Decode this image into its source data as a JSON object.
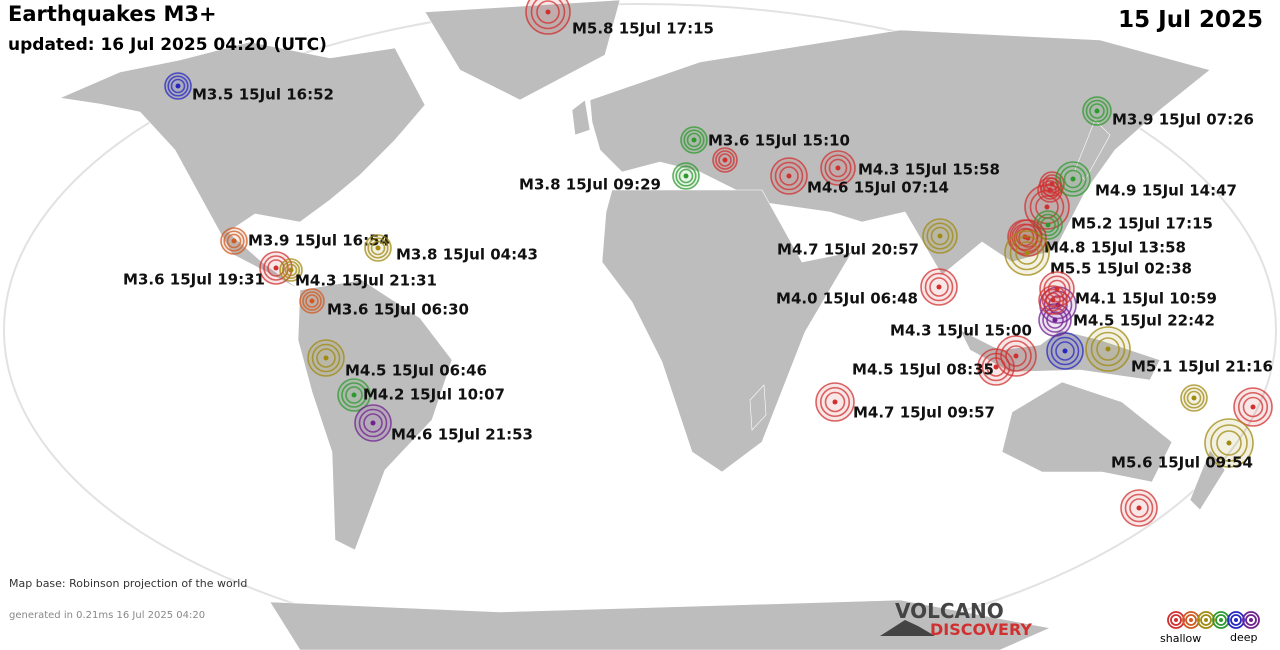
{
  "header": {
    "title": "Earthquakes M3+",
    "updated": "updated: 16 Jul 2025 04:20 (UTC)",
    "date": "15 Jul 2025"
  },
  "footer": {
    "map_base": "Map base: Robinson projection of the world",
    "generated": "generated in 0.21ms 16 Jul 2025 04:20"
  },
  "logo": {
    "top": "VOLCANO",
    "bottom": "DISCOVERY"
  },
  "legend": {
    "colors": [
      "#d03030",
      "#d05a20",
      "#a08a10",
      "#2e9a2e",
      "#2828c0",
      "#702090"
    ],
    "shallow": "shallow",
    "deep": "deep"
  },
  "quakes": [
    {
      "label": "M5.8 15Jul 17:15",
      "color": "#d03030"
    },
    {
      "label": "M3.5 15Jul 16:52",
      "color": "#2828c0"
    },
    {
      "label": "M3.9 15Jul 07:26",
      "color": "#2e9a2e"
    },
    {
      "label": "M3.6 15Jul 15:10",
      "color": "#2e9a2e"
    },
    {
      "label": "M3.8 15Jul 09:29",
      "color": "#2e9a2e"
    },
    {
      "label": "M4.3 15Jul 15:58",
      "color": "#d03030"
    },
    {
      "label": "M4.6 15Jul 07:14",
      "color": "#d03030"
    },
    {
      "label": "M4.9 15Jul 14:47",
      "color": "#2e9a2e"
    },
    {
      "label": "M5.2 15Jul 17:15",
      "color": "#d03030"
    },
    {
      "label": "M4.7 15Jul 20:57",
      "color": "#a08a10"
    },
    {
      "label": "M4.8 15Jul 13:58",
      "color": "#d03030"
    },
    {
      "label": "M5.5 15Jul 02:38",
      "color": "#a08a10"
    },
    {
      "label": "M3.9 15Jul 16:54",
      "color": "#d05a20"
    },
    {
      "label": "M3.8 15Jul 04:43",
      "color": "#a08a10"
    },
    {
      "label": "M3.6 15Jul 19:31",
      "color": "#d03030"
    },
    {
      "label": "M4.3 15Jul 21:31",
      "color": "#a08a10"
    },
    {
      "label": "M3.6 15Jul 06:30",
      "color": "#d05a20"
    },
    {
      "label": "M4.0 15Jul 06:48",
      "color": "#d03030"
    },
    {
      "label": "M4.1 15Jul 10:59",
      "color": "#d03030"
    },
    {
      "label": "M4.5 15Jul 22:42",
      "color": "#702090"
    },
    {
      "label": "M4.3 15Jul 15:00",
      "color": "#d03030"
    },
    {
      "label": "M5.1 15Jul 21:16",
      "color": "#a08a10"
    },
    {
      "label": "M4.5 15Jul 08:35",
      "color": "#d03030"
    },
    {
      "label": "M4.5 15Jul 06:46",
      "color": "#a08a10"
    },
    {
      "label": "M4.2 15Jul 10:07",
      "color": "#2e9a2e"
    },
    {
      "label": "M4.6 15Jul 21:53",
      "color": "#702090"
    },
    {
      "label": "M4.7 15Jul 09:57",
      "color": "#d03030"
    },
    {
      "label": "M5.6 15Jul 09:54",
      "color": "#a08a10"
    }
  ]
}
